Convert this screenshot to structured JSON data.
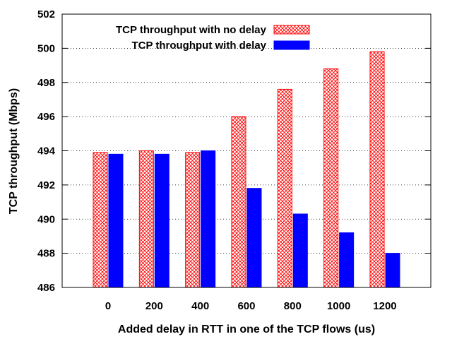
{
  "chart_data": {
    "type": "bar",
    "title": "",
    "xlabel": "Added delay in RTT in one of the TCP flows (us)",
    "ylabel": "TCP throughput (Mbps)",
    "categories": [
      "0",
      "200",
      "400",
      "600",
      "800",
      "1000",
      "1200"
    ],
    "ylim": [
      486,
      502
    ],
    "yticks": [
      "486",
      "488",
      "490",
      "492",
      "494",
      "496",
      "498",
      "500",
      "502"
    ],
    "grid": "horizontal dotted",
    "legend_position": "top-right",
    "series": [
      {
        "name": "TCP throughput with no delay",
        "values": [
          493.9,
          494.0,
          493.9,
          496.0,
          497.6,
          498.8,
          499.8
        ],
        "color": "#ff0000",
        "fill": "crosshatch"
      },
      {
        "name": "TCP throughput with delay",
        "values": [
          493.8,
          493.8,
          494.0,
          491.8,
          490.3,
          489.2,
          488.0
        ],
        "color": "#0000ff",
        "fill": "solid"
      }
    ]
  }
}
